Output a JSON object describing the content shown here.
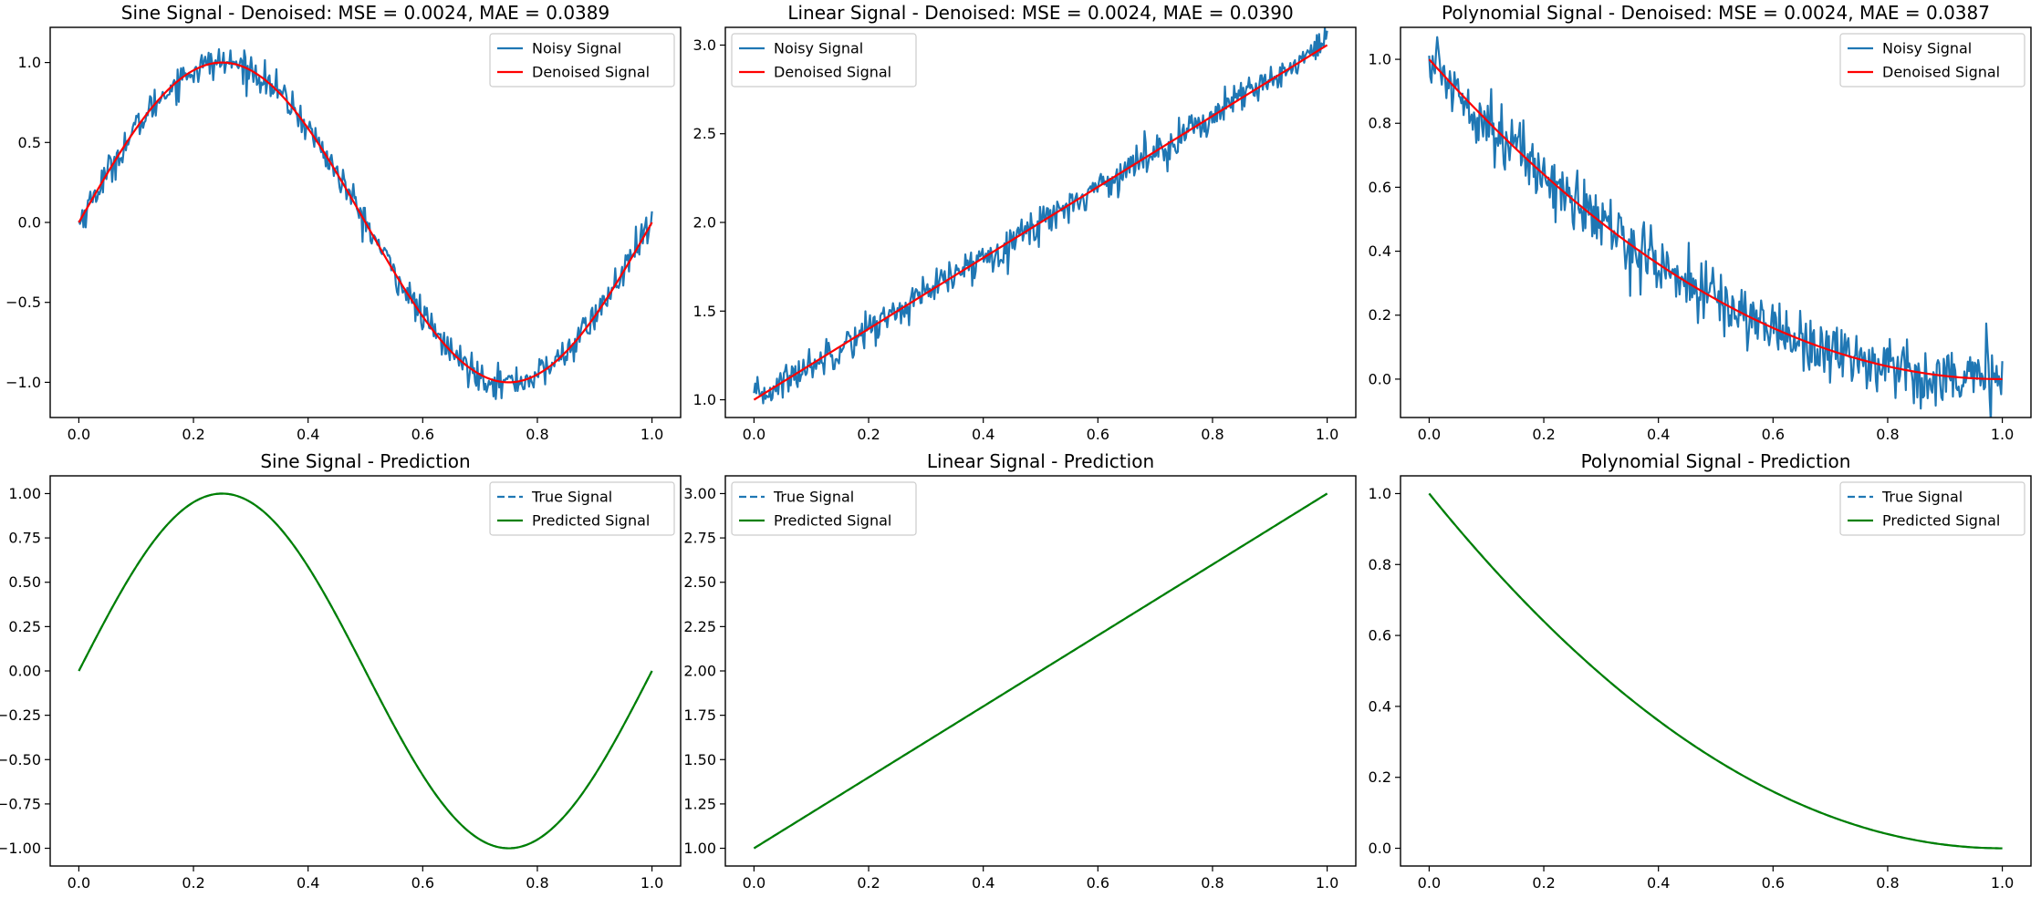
{
  "chart_data": [
    {
      "type": "line",
      "title": "Sine Signal - Denoised: MSE = 0.0024, MAE = 0.0389",
      "xlabel": "",
      "ylabel": "",
      "xlim": [
        -0.05,
        1.05
      ],
      "ylim": [
        -1.22,
        1.22
      ],
      "xticks": [
        "0.0",
        "0.2",
        "0.4",
        "0.6",
        "0.8",
        "1.0"
      ],
      "yticks": [
        "−1.0",
        "−0.5",
        "0.0",
        "0.5",
        "1.0"
      ],
      "legend": "top-right",
      "grid": false,
      "series": [
        {
          "name": "Noisy Signal",
          "color": "#1f77b4",
          "style": "solid",
          "kind": "noisy",
          "func": "sin",
          "noise": 0.05
        },
        {
          "name": "Denoised Signal",
          "color": "#ff0000",
          "style": "solid",
          "kind": "smooth",
          "func": "sin"
        }
      ]
    },
    {
      "type": "line",
      "title": "Linear Signal - Denoised: MSE = 0.0024, MAE = 0.0390",
      "xlabel": "",
      "ylabel": "",
      "xlim": [
        -0.05,
        1.05
      ],
      "ylim": [
        0.9,
        3.1
      ],
      "xticks": [
        "0.0",
        "0.2",
        "0.4",
        "0.6",
        "0.8",
        "1.0"
      ],
      "yticks": [
        "1.0",
        "1.5",
        "2.0",
        "2.5",
        "3.0"
      ],
      "legend": "top-left",
      "grid": false,
      "series": [
        {
          "name": "Noisy Signal",
          "color": "#1f77b4",
          "style": "solid",
          "kind": "noisy",
          "func": "lin",
          "noise": 0.05
        },
        {
          "name": "Denoised Signal",
          "color": "#ff0000",
          "style": "solid",
          "kind": "smooth",
          "func": "lin"
        }
      ]
    },
    {
      "type": "line",
      "title": "Polynomial Signal - Denoised: MSE = 0.0024, MAE = 0.0387",
      "xlabel": "",
      "ylabel": "",
      "xlim": [
        -0.05,
        1.05
      ],
      "ylim": [
        -0.12,
        1.1
      ],
      "xticks": [
        "0.0",
        "0.2",
        "0.4",
        "0.6",
        "0.8",
        "1.0"
      ],
      "yticks": [
        "0.0",
        "0.2",
        "0.4",
        "0.6",
        "0.8",
        "1.0"
      ],
      "legend": "top-right",
      "grid": false,
      "series": [
        {
          "name": "Noisy Signal",
          "color": "#1f77b4",
          "style": "solid",
          "kind": "noisy",
          "func": "poly",
          "noise": 0.05
        },
        {
          "name": "Denoised Signal",
          "color": "#ff0000",
          "style": "solid",
          "kind": "smooth",
          "func": "poly"
        }
      ]
    },
    {
      "type": "line",
      "title": "Sine Signal - Prediction",
      "xlabel": "",
      "ylabel": "",
      "xlim": [
        -0.05,
        1.05
      ],
      "ylim": [
        -1.1,
        1.1
      ],
      "xticks": [
        "0.0",
        "0.2",
        "0.4",
        "0.6",
        "0.8",
        "1.0"
      ],
      "yticks": [
        "−1.00",
        "−0.75",
        "−0.50",
        "−0.25",
        "0.00",
        "0.25",
        "0.50",
        "0.75",
        "1.00"
      ],
      "legend": "top-right",
      "grid": false,
      "series": [
        {
          "name": "True Signal",
          "color": "#1f77b4",
          "style": "dashed",
          "kind": "smooth",
          "func": "sin"
        },
        {
          "name": "Predicted Signal",
          "color": "#008000",
          "style": "solid",
          "kind": "smooth",
          "func": "sin"
        }
      ]
    },
    {
      "type": "line",
      "title": "Linear Signal - Prediction",
      "xlabel": "",
      "ylabel": "",
      "xlim": [
        -0.05,
        1.05
      ],
      "ylim": [
        0.9,
        3.1
      ],
      "xticks": [
        "0.0",
        "0.2",
        "0.4",
        "0.6",
        "0.8",
        "1.0"
      ],
      "yticks": [
        "1.00",
        "1.25",
        "1.50",
        "1.75",
        "2.00",
        "2.25",
        "2.50",
        "2.75",
        "3.00"
      ],
      "legend": "top-left",
      "grid": false,
      "series": [
        {
          "name": "True Signal",
          "color": "#1f77b4",
          "style": "dashed",
          "kind": "smooth",
          "func": "lin"
        },
        {
          "name": "Predicted Signal",
          "color": "#008000",
          "style": "solid",
          "kind": "smooth",
          "func": "lin"
        }
      ]
    },
    {
      "type": "line",
      "title": "Polynomial Signal - Prediction",
      "xlabel": "",
      "ylabel": "",
      "xlim": [
        -0.05,
        1.05
      ],
      "ylim": [
        -0.05,
        1.05
      ],
      "xticks": [
        "0.0",
        "0.2",
        "0.4",
        "0.6",
        "0.8",
        "1.0"
      ],
      "yticks": [
        "0.0",
        "0.2",
        "0.4",
        "0.6",
        "0.8",
        "1.0"
      ],
      "legend": "top-right",
      "grid": false,
      "series": [
        {
          "name": "True Signal",
          "color": "#1f77b4",
          "style": "dashed",
          "kind": "smooth",
          "func": "poly"
        },
        {
          "name": "Predicted Signal",
          "color": "#008000",
          "style": "solid",
          "kind": "smooth",
          "func": "poly"
        }
      ]
    }
  ]
}
